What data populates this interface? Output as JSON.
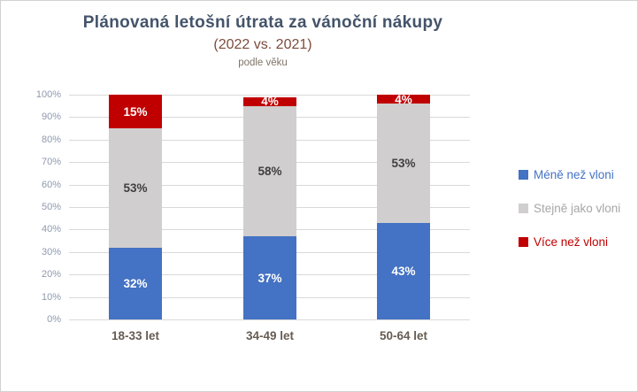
{
  "chart_data": {
    "type": "bar",
    "stacked": true,
    "percent_stacked": true,
    "title": "Plánovaná letošní útrata za vánoční nákupy",
    "subtitle": "(2022 vs. 2021)",
    "note": "podle věku",
    "categories": [
      "18-33 let",
      "34-49 let",
      "50-64 let"
    ],
    "series": [
      {
        "name": "Méně než vloni",
        "color": "#4472c4",
        "label_color": "#ffffff",
        "legend_text_color": "#4472c4",
        "values": [
          32,
          37,
          43
        ],
        "labels": [
          "32%",
          "37%",
          "43%"
        ]
      },
      {
        "name": "Stejně jako vloni",
        "color": "#d0cece",
        "label_color": "#404040",
        "legend_text_color": "#a6a6a6",
        "values": [
          53,
          58,
          53
        ],
        "labels": [
          "53%",
          "58%",
          "53%"
        ]
      },
      {
        "name": "Více než vloni",
        "color": "#c00000",
        "label_color": "#ffffff",
        "legend_text_color": "#c00000",
        "values": [
          15,
          4,
          4
        ],
        "labels": [
          "15%",
          "4%",
          "4%"
        ]
      }
    ],
    "xlabel": "",
    "ylabel": "",
    "ylim": [
      0,
      100
    ],
    "ytick_step": 10,
    "ytick_labels": [
      "0%",
      "10%",
      "20%",
      "30%",
      "40%",
      "50%",
      "60%",
      "70%",
      "80%",
      "90%",
      "100%"
    ],
    "grid": true,
    "legend_position": "right"
  },
  "colors": {
    "title_text": "#44546a",
    "subtitle_text": "#7e4b3c",
    "note_text": "#7f7468",
    "axis_tick_text": "#8e99ae",
    "category_text": "#665c52",
    "gridline": "#d9d9d9",
    "chart_border": "#d2d2d2",
    "background": "#ffffff"
  }
}
